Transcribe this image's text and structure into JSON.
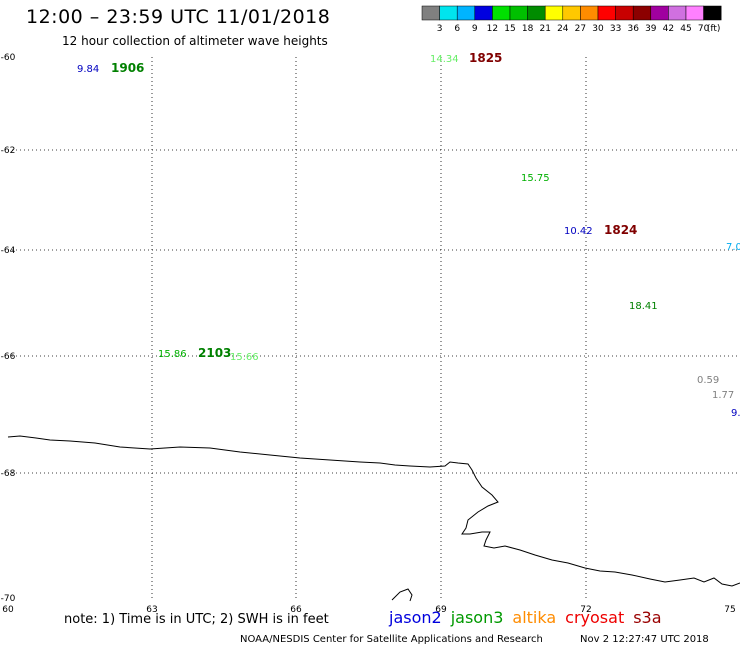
{
  "header": {
    "title": "12:00 – 23:59 UTC 11/01/2018",
    "subtitle": "12 hour collection of altimeter wave heights"
  },
  "colorbar": {
    "labels": [
      "3",
      "6",
      "9",
      "12",
      "15",
      "18",
      "21",
      "24",
      "27",
      "30",
      "33",
      "36",
      "39",
      "42",
      "45",
      "70"
    ],
    "unit": "(ft)",
    "colors": [
      "#808080",
      "#00e5ee",
      "#00b4ff",
      "#0000e0",
      "#00e000",
      "#00c000",
      "#008c00",
      "#ffff00",
      "#ffc800",
      "#ff8c00",
      "#ff0000",
      "#c80000",
      "#8c0000",
      "#a000a0",
      "#d070e0",
      "#ff80ff",
      "#000000"
    ]
  },
  "map": {
    "lon_range": [
      60,
      75
    ],
    "lat_range": [
      -70,
      -60
    ],
    "lon_ticks": [
      "60",
      "63",
      "66",
      "69",
      "72",
      "75"
    ],
    "lat_ticks": [
      "-60",
      "-62",
      "-64",
      "-66",
      "-68",
      "-70"
    ],
    "gridlines": "dotted"
  },
  "observations": [
    {
      "text": "9.84",
      "color": "#0000c0",
      "style": "normal"
    },
    {
      "text": "1906",
      "color": "#008000",
      "style": "bold"
    },
    {
      "text": "14.34",
      "color": "#66ee66",
      "style": "normal"
    },
    {
      "text": "1825",
      "color": "#800000",
      "style": "bold"
    },
    {
      "text": "15.75",
      "color": "#00b000",
      "style": "normal"
    },
    {
      "text": "10.42",
      "color": "#0000c0",
      "style": "normal"
    },
    {
      "text": "1824",
      "color": "#800000",
      "style": "bold"
    },
    {
      "text": "7.0",
      "color": "#00aaee",
      "style": "normal"
    },
    {
      "text": "18.41",
      "color": "#008000",
      "style": "normal"
    },
    {
      "text": "15.86",
      "color": "#00b000",
      "style": "normal"
    },
    {
      "text": "2103",
      "color": "#008000",
      "style": "bold"
    },
    {
      "text": "15.66",
      "color": "#66ee66",
      "style": "normal"
    },
    {
      "text": "0.59",
      "color": "#808080",
      "style": "normal"
    },
    {
      "text": "1.77",
      "color": "#808080",
      "style": "normal"
    },
    {
      "text": "9.",
      "color": "#0000c0",
      "style": "normal"
    }
  ],
  "footer": {
    "note": "note: 1) Time is in UTC; 2) SWH is in feet",
    "satellites": [
      {
        "name": "jason2",
        "color": "#0000dd"
      },
      {
        "name": "jason3",
        "color": "#009900"
      },
      {
        "name": "altika",
        "color": "#ff8c00"
      },
      {
        "name": "cryosat",
        "color": "#ee0000"
      },
      {
        "name": "s3a",
        "color": "#990000"
      }
    ],
    "credit": "NOAA/NESDIS Center for Satellite Applications and Research",
    "timestamp": "Nov  2 12:27:47 UTC 2018"
  }
}
